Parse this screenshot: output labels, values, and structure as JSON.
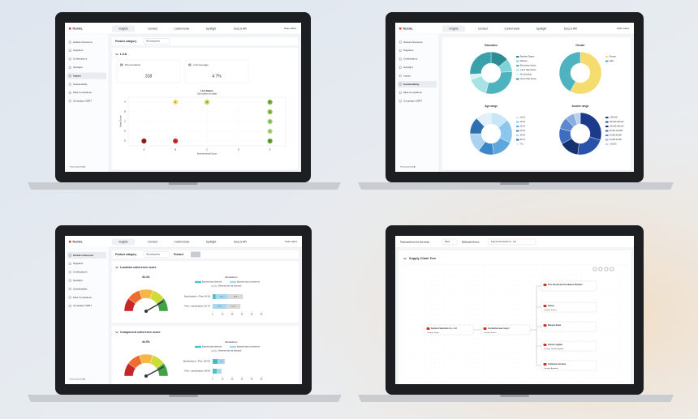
{
  "common": {
    "logo": "TILKAL",
    "nav": [
      "Insights",
      "Connect",
      "Control tower",
      "Spotlight",
      "Docs & API"
    ],
    "node_status": "Node status",
    "powered_by": "Powered by TILKAL"
  },
  "lca_screen": {
    "sidebar": [
      {
        "label": "Global coherence",
        "active": false
      },
      {
        "label": "Suppliers",
        "active": false
      },
      {
        "label": "Certifications",
        "active": false
      },
      {
        "label": "Spotlight",
        "active": false
      },
      {
        "label": "Impact",
        "active": true
      },
      {
        "label": "Sustainability",
        "active": false
      },
      {
        "label": "Mica Compliance",
        "active": false
      },
      {
        "label": "Campaign CMRT",
        "active": false
      }
    ],
    "filter_label": "Product category",
    "filter_value": "All categories",
    "section": "LCA",
    "kpis": [
      {
        "label": "Pivot products",
        "value": 318
      },
      {
        "label": "LCA coverage",
        "value": "4.7%"
      }
    ],
    "matrix": {
      "type": "bubble",
      "title": "LCA Matrix",
      "subtitle": "Click bubbles for details",
      "x_label": "Environmental Score",
      "y_label": "Social Score",
      "xticks": [
        "A",
        "B",
        "C",
        "D",
        "E"
      ],
      "yticks": [
        "A",
        "B",
        "C",
        "D",
        "E"
      ],
      "bubbles": [
        {
          "x": "B",
          "y": "A",
          "count": 1,
          "color": "#f2dc6b"
        },
        {
          "x": "C",
          "y": "A",
          "count": 4,
          "color": "#c9d45c"
        },
        {
          "x": "E",
          "y": "A",
          "count": 6,
          "color": "#7cb342"
        },
        {
          "x": "E",
          "y": "B",
          "count": 2,
          "color": "#8bc34a"
        },
        {
          "x": "E",
          "y": "C",
          "count": 3,
          "color": "#9ccc65"
        },
        {
          "x": "E",
          "y": "D",
          "count": 1,
          "color": "#aed581"
        },
        {
          "x": "A",
          "y": "E",
          "count": 1,
          "color": "#8b1a1a"
        },
        {
          "x": "B",
          "y": "E",
          "count": 1,
          "color": "#c62828"
        },
        {
          "x": "E",
          "y": "E",
          "count": 2,
          "color": "#689f38"
        }
      ]
    }
  },
  "demographics_screen": {
    "sidebar": [
      {
        "label": "Global coherence",
        "active": false
      },
      {
        "label": "Suppliers",
        "active": false
      },
      {
        "label": "Certifications",
        "active": false
      },
      {
        "label": "Spotlight",
        "active": false
      },
      {
        "label": "Impact",
        "active": false
      },
      {
        "label": "Sustainability",
        "active": true
      },
      {
        "label": "Mica Compliance",
        "active": false
      },
      {
        "label": "Campaign CMRT",
        "active": false
      }
    ],
    "charts": [
      {
        "type": "donut",
        "title": "Education",
        "categories": [
          "Bachelor Degree",
          "Diploma",
          "Elementary School",
          "Junior High School",
          "No Schooling",
          "Senior High School"
        ],
        "values": [
          14,
          10,
          30,
          16,
          4,
          26
        ],
        "colors": [
          "#2a8c95",
          "#7fd3d6",
          "#4fb3bf",
          "#a7e3e4",
          "#d6f2f2",
          "#3aa0ab"
        ]
      },
      {
        "type": "donut",
        "title": "Gender",
        "categories": [
          "Female",
          "Male"
        ],
        "values": [
          58,
          42
        ],
        "colors": [
          "#f5dc6e",
          "#4fb3bf"
        ]
      },
      {
        "type": "donut",
        "title": "Age range",
        "categories": [
          "18-24",
          "25-34",
          "35-44",
          "45-54",
          "55-64",
          "65-74",
          "75+"
        ],
        "values": [
          14,
          18,
          16,
          12,
          15,
          13,
          12
        ],
        "colors": [
          "#c9e6f7",
          "#8cc6ec",
          "#5ea7dd",
          "#3a86c8",
          "#a9d3f0",
          "#2f6fb0",
          "#e1f0fa"
        ]
      },
      {
        "type": "donut",
        "title": "Income range",
        "categories": [
          ">400,000",
          "200,000-400,000",
          "100,000-200,000",
          "50,000-100,000",
          "20,000-50,000",
          "10,000-20,000",
          "<10,000"
        ],
        "values": [
          30,
          22,
          15,
          12,
          9,
          7,
          5
        ],
        "colors": [
          "#1b3a8c",
          "#2a52a8",
          "#163070",
          "#3d6cc0",
          "#5c88d0",
          "#8aaee0",
          "#bcd0ef"
        ]
      }
    ]
  },
  "coherence_screen": {
    "sidebar": [
      {
        "label": "Global coherence",
        "active": true
      },
      {
        "label": "Suppliers",
        "active": false
      },
      {
        "label": "Certifications",
        "active": false
      },
      {
        "label": "Spotlight",
        "active": false
      },
      {
        "label": "Sustainability",
        "active": false
      },
      {
        "label": "Mica Compliance",
        "active": false
      },
      {
        "label": "Campaign CMRT",
        "active": false
      }
    ],
    "filter_label": "Product category",
    "filter_value": "All categories",
    "product_label": "Product",
    "legend": [
      {
        "name": "Expected and observed",
        "color": "#4cc3c4"
      },
      {
        "name": "Expected and not observed",
        "color": "#a9d6f0"
      },
      {
        "name": "Observed and not expected",
        "color": "#d9d9d9"
      }
    ],
    "gauge_range": [
      0,
      100
    ],
    "xlim": [
      0,
      50
    ],
    "xticks": [
      0,
      10,
      20,
      30,
      40,
      50
    ],
    "sections": [
      {
        "title": "Location coherence score",
        "score": 83.4,
        "score_label": "83.4%",
        "breakdown_title": "Breakdown",
        "rows": [
          {
            "label": "Specifications > Flow: 94.1%",
            "values": [
              3.2,
              12.1,
              15.8
            ]
          },
          {
            "label": "Flow > specifications: 52.7%",
            "values": [
              0,
              13.9,
              14.6
            ]
          }
        ]
      },
      {
        "title": "Component coherence score",
        "score": 84.5,
        "score_label": "84.5%",
        "breakdown_title": "Breakdown",
        "rows": [
          {
            "label": "Specifications > Flow: 100.0%",
            "values": [
              5.3,
              7.1,
              0
            ]
          },
          {
            "label": "Flow > specifications: 28.6%",
            "values": [
              4.2,
              4.9,
              0
            ]
          }
        ]
      }
    ]
  },
  "tree_screen": {
    "year_label": "Transactions for the year:",
    "year": "2021",
    "actor_label": "Selected Actor:",
    "actor": "Kojima Chemicals Co., Ltd",
    "title": "Supply Chain Tree",
    "nodes": [
      {
        "name": "Kojima Chemicals Co., Ltd",
        "country": "Country: Japan"
      },
      {
        "name": "Confectionneur rang 1",
        "country": "Country: France"
      },
      {
        "name": "Test 'Restricted Circulation Number'"
      },
      {
        "name": "Glaces",
        "country": "Country: France"
      },
      {
        "name": "Marque finale"
      },
      {
        "name": "Gravier anglais",
        "country": "Country: United Kingdom"
      },
      {
        "name": "Collecteur de latex",
        "country": "Country: Argentina"
      }
    ]
  }
}
